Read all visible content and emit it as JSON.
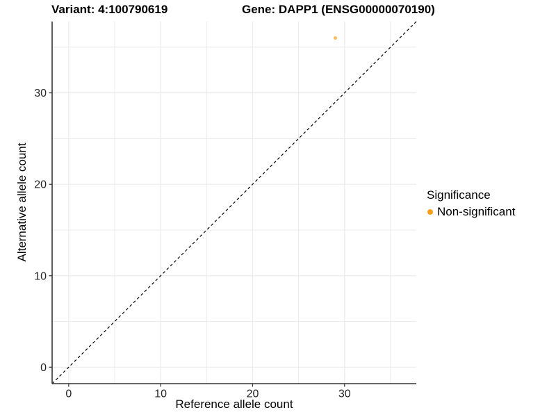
{
  "chart_data": {
    "type": "scatter",
    "title_left": "Variant: 4:100790619",
    "title_right": "Gene: DAPP1 (ENSG00000070190)",
    "xlabel": "Reference allele count",
    "ylabel": "Alternative allele count",
    "xlim": [
      -1.8,
      37.8
    ],
    "ylim": [
      -1.8,
      37.8
    ],
    "x_major_ticks": [
      0,
      10,
      20,
      30
    ],
    "y_major_ticks": [
      0,
      10,
      20,
      30
    ],
    "x_minor_gridlines": [
      5,
      15,
      25,
      35
    ],
    "y_minor_gridlines": [
      5,
      15,
      25,
      35
    ],
    "grid": "on",
    "reference_line": {
      "kind": "identity",
      "style": "dashed",
      "color": "#000000"
    },
    "points": [
      {
        "x": 29,
        "y": 36,
        "series": "Non-significant"
      }
    ],
    "point_style": {
      "color": "#FF9E1B",
      "opacity": 0.7,
      "radius": 2.5
    },
    "legend": {
      "title": "Significance",
      "position": "right",
      "entries": [
        {
          "label": "Non-significant",
          "color": "#FF9E1B"
        }
      ]
    },
    "colors": {
      "grid": "#EBEBEB",
      "axis_line": "#333333",
      "tick_text": "#262626",
      "title_text": "#000000"
    }
  }
}
